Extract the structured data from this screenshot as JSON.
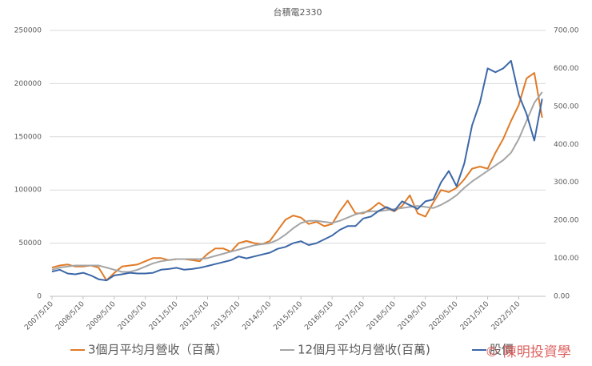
{
  "chart_data": {
    "type": "line",
    "title": "台積電2330",
    "categories": [
      "2007/5/10",
      null,
      null,
      null,
      "2008/5/10",
      null,
      null,
      null,
      "2009/5/10",
      null,
      null,
      null,
      "2010/5/10",
      null,
      null,
      null,
      "2011/5/10",
      null,
      null,
      null,
      "2012/5/10",
      null,
      null,
      null,
      "2013/5/10",
      null,
      null,
      null,
      "2014/5/10",
      null,
      null,
      null,
      "2015/5/10",
      null,
      null,
      null,
      "2016/5/10",
      null,
      null,
      null,
      "2017/5/10",
      null,
      null,
      null,
      "2018/5/10",
      null,
      null,
      null,
      "2019/5/10",
      null,
      null,
      null,
      "2020/5/10",
      null,
      null,
      null,
      "2021/5/10",
      null,
      null,
      null,
      "2022/5/10",
      null,
      null,
      null
    ],
    "series": [
      {
        "name": "3個月平均月營收（百萬）",
        "color": "#e07b28",
        "values": [
          27000,
          29000,
          30000,
          28000,
          28000,
          29000,
          27000,
          15000,
          22000,
          28000,
          29000,
          30000,
          33000,
          36000,
          36000,
          34000,
          35000,
          35000,
          34000,
          33000,
          40000,
          45000,
          45000,
          42000,
          50000,
          52000,
          50000,
          49000,
          52000,
          62000,
          72000,
          76000,
          74000,
          68000,
          70000,
          66000,
          68000,
          80000,
          90000,
          78000,
          78000,
          82000,
          88000,
          83000,
          80000,
          85000,
          95000,
          78000,
          75000,
          88000,
          100000,
          98000,
          102000,
          110000,
          120000,
          122000,
          120000,
          135000,
          148000,
          165000,
          180000,
          205000,
          210000,
          168000
        ]
      },
      {
        "name": "12個月平均月營收(百萬)",
        "color": "#a5a5a5",
        "values": [
          25000,
          27000,
          28000,
          29000,
          29000,
          29000,
          29000,
          27000,
          25000,
          23000,
          23000,
          25000,
          28000,
          31000,
          33000,
          34000,
          35000,
          35000,
          35000,
          35000,
          36000,
          38000,
          40000,
          42000,
          44000,
          46000,
          48000,
          49000,
          50000,
          53000,
          58000,
          64000,
          69000,
          71000,
          71000,
          70000,
          69000,
          71000,
          74000,
          77000,
          79000,
          80000,
          80000,
          81000,
          82000,
          83000,
          84000,
          85000,
          84000,
          83000,
          86000,
          90000,
          95000,
          102000,
          108000,
          113000,
          118000,
          123000,
          128000,
          135000,
          148000,
          165000,
          182000,
          192000
        ]
      },
      {
        "name": "股價",
        "color": "#3d68a8",
        "axis": "y2",
        "values": [
          65,
          70,
          60,
          58,
          62,
          55,
          45,
          42,
          55,
          58,
          62,
          60,
          60,
          62,
          70,
          72,
          75,
          70,
          72,
          75,
          80,
          85,
          90,
          95,
          105,
          100,
          105,
          110,
          115,
          125,
          130,
          140,
          145,
          135,
          140,
          150,
          160,
          175,
          185,
          185,
          205,
          210,
          225,
          235,
          225,
          250,
          240,
          230,
          250,
          255,
          300,
          330,
          290,
          350,
          450,
          510,
          600,
          590,
          600,
          620,
          530,
          480,
          410,
          520
        ]
      }
    ],
    "ylim": [
      0,
      250000
    ],
    "yticks": [
      0,
      50000,
      100000,
      150000,
      200000,
      250000
    ],
    "y2lim": [
      0,
      700
    ],
    "y2ticks": [
      {
        "value": 0,
        "label": "0.00"
      },
      {
        "value": 100,
        "label": "100.00"
      },
      {
        "value": 200,
        "label": "200.00"
      },
      {
        "value": 300,
        "label": "300.00"
      },
      {
        "value": 400,
        "label": "400.00"
      },
      {
        "value": 500,
        "label": "500.00"
      },
      {
        "value": 600,
        "label": "600.00"
      },
      {
        "value": 700,
        "label": "700.00"
      }
    ],
    "grid": true,
    "legend": "bottom",
    "watermark": "© 陳明投資學"
  }
}
